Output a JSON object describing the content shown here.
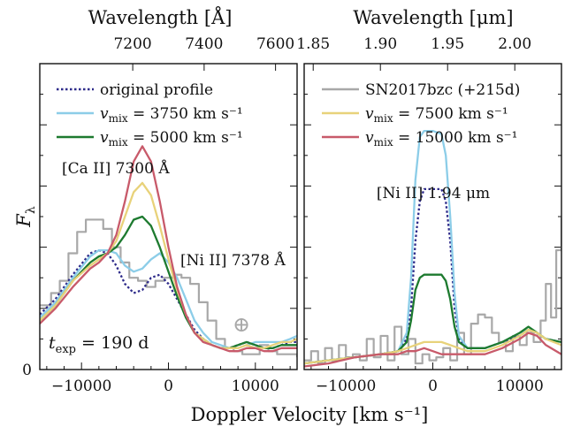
{
  "chart_data": {
    "type": "line",
    "xlabel": "Doppler Velocity [km s⁻¹]",
    "ylabel": "Fλ",
    "ylabel_parts": {
      "base": "F",
      "sub": "λ"
    },
    "zero_label": "0",
    "panels": [
      {
        "id": "left",
        "xlim": [
          -14800,
          14800
        ],
        "ylim": [
          0,
          1.0
        ],
        "xticks": [
          -10000,
          0,
          10000
        ],
        "xtick_labels": [
          "−10000",
          "0",
          "10000"
        ],
        "top_axis": {
          "label": "Wavelength [Å]",
          "ticks": [
            7200,
            7400,
            7600
          ],
          "tick_labels": [
            "7200",
            "7400",
            "7600"
          ],
          "rest_wavelength": 7300
        },
        "annotations": {
          "line1": "[Ca II] 7300 Å",
          "line2": "[Ni II] 7378 Å",
          "time_text": "t_exp = 190 d",
          "time_parts": {
            "base": "t",
            "sub": "exp",
            "rest": " = 190 d"
          },
          "earth_symbol": "⊕"
        },
        "legend": [
          {
            "label": "original profile",
            "color": "#2e2b8a",
            "dash": true
          },
          {
            "label": "v_mix = 3750 km s⁻¹",
            "base": "v",
            "sub": "mix",
            "rest": " = 3750 km s⁻¹",
            "color": "#8ccde8"
          },
          {
            "label": "v_mix = 5000 km s⁻¹",
            "base": "v",
            "sub": "mix",
            "rest": " = 5000 km s⁻¹",
            "color": "#1d7a2f"
          }
        ],
        "series": [
          {
            "name": "SN2017bzc (+215d)",
            "color": "#a8a8a8",
            "step": true,
            "x": [
              -14800,
              -13500,
              -12500,
              -11500,
              -10500,
              -9500,
              -8500,
              -7500,
              -6500,
              -5500,
              -4500,
              -3500,
              -2500,
              -1500,
              -500,
              500,
              1500,
              2500,
              3500,
              4500,
              5500,
              6500,
              7500,
              8500,
              9500,
              10500,
              11500,
              12500,
              13500,
              14800
            ],
            "y": [
              0.21,
              0.25,
              0.29,
              0.38,
              0.45,
              0.49,
              0.49,
              0.46,
              0.4,
              0.35,
              0.3,
              0.29,
              0.27,
              0.29,
              0.3,
              0.31,
              0.3,
              0.28,
              0.22,
              0.16,
              0.1,
              0.07,
              0.06,
              0.05,
              0.05,
              0.08,
              0.06,
              0.05,
              0.05,
              0.04
            ]
          },
          {
            "name": "original profile",
            "color": "#2e2b8a",
            "dash": true,
            "x": [
              -14800,
              -13000,
              -11000,
              -9000,
              -8000,
              -7000,
              -6000,
              -5000,
              -4000,
              -3000,
              -2000,
              -1000,
              0,
              1000,
              2000,
              3000,
              4000,
              5000,
              6000,
              7000,
              8000,
              9000,
              10000,
              11000,
              12000,
              13000,
              14000,
              14800
            ],
            "y": [
              0.18,
              0.23,
              0.31,
              0.38,
              0.39,
              0.38,
              0.34,
              0.28,
              0.25,
              0.26,
              0.3,
              0.31,
              0.28,
              0.23,
              0.18,
              0.13,
              0.1,
              0.08,
              0.07,
              0.07,
              0.08,
              0.09,
              0.08,
              0.07,
              0.07,
              0.08,
              0.09,
              0.09
            ]
          },
          {
            "name": "v_mix = 3750 km s⁻¹",
            "color": "#8ccde8",
            "x": [
              -14800,
              -13000,
              -11000,
              -9000,
              -8000,
              -7000,
              -6000,
              -5000,
              -4000,
              -3000,
              -2000,
              -1000,
              0,
              1000,
              2000,
              3000,
              4000,
              5000,
              6000,
              7000,
              8000,
              9000,
              10000,
              11000,
              12000,
              13000,
              14000,
              14800
            ],
            "y": [
              0.17,
              0.22,
              0.3,
              0.37,
              0.39,
              0.39,
              0.38,
              0.34,
              0.32,
              0.33,
              0.36,
              0.38,
              0.35,
              0.3,
              0.23,
              0.16,
              0.12,
              0.09,
              0.08,
              0.07,
              0.07,
              0.08,
              0.09,
              0.09,
              0.09,
              0.09,
              0.1,
              0.11
            ]
          },
          {
            "name": "v_mix = 5000 km s⁻¹",
            "color": "#1d7a2f",
            "x": [
              -14800,
              -13000,
              -11000,
              -9000,
              -8000,
              -7000,
              -6000,
              -5000,
              -4000,
              -3000,
              -2000,
              -1000,
              0,
              1000,
              2000,
              3000,
              4000,
              5000,
              6000,
              7000,
              8000,
              9000,
              10000,
              11000,
              12000,
              13000,
              14000,
              14800
            ],
            "y": [
              0.16,
              0.21,
              0.29,
              0.35,
              0.37,
              0.38,
              0.4,
              0.44,
              0.49,
              0.5,
              0.47,
              0.4,
              0.32,
              0.24,
              0.17,
              0.12,
              0.1,
              0.08,
              0.07,
              0.07,
              0.08,
              0.09,
              0.08,
              0.07,
              0.07,
              0.08,
              0.08,
              0.08
            ]
          },
          {
            "name": "v_mix = 7500 km s⁻¹",
            "color": "#e8d27a",
            "x": [
              -14800,
              -13000,
              -11000,
              -9000,
              -8000,
              -7000,
              -6000,
              -5000,
              -4000,
              -3000,
              -2000,
              -1000,
              0,
              1000,
              2000,
              3000,
              4000,
              5000,
              6000,
              7000,
              8000,
              9000,
              10000,
              11000,
              12000,
              13000,
              14000,
              14800
            ],
            "y": [
              0.16,
              0.21,
              0.29,
              0.34,
              0.36,
              0.38,
              0.42,
              0.5,
              0.58,
              0.61,
              0.57,
              0.47,
              0.36,
              0.26,
              0.18,
              0.12,
              0.1,
              0.08,
              0.07,
              0.07,
              0.07,
              0.08,
              0.07,
              0.07,
              0.08,
              0.09,
              0.09,
              0.1
            ]
          },
          {
            "name": "v_mix = 15000 km s⁻¹",
            "color": "#c85a6a",
            "x": [
              -14800,
              -13000,
              -11000,
              -9000,
              -8000,
              -7000,
              -6000,
              -5000,
              -4000,
              -3000,
              -2000,
              -1000,
              0,
              1000,
              2000,
              3000,
              4000,
              5000,
              6000,
              7000,
              8000,
              9000,
              10000,
              11000,
              12000,
              13000,
              14000,
              14800
            ],
            "y": [
              0.15,
              0.2,
              0.27,
              0.33,
              0.35,
              0.38,
              0.44,
              0.55,
              0.68,
              0.73,
              0.68,
              0.55,
              0.4,
              0.27,
              0.18,
              0.12,
              0.09,
              0.08,
              0.07,
              0.06,
              0.06,
              0.07,
              0.07,
              0.06,
              0.06,
              0.07,
              0.07,
              0.07
            ]
          }
        ]
      },
      {
        "id": "right",
        "xlim": [
          -14800,
          14800
        ],
        "ylim": [
          0,
          1.0
        ],
        "xticks": [
          -10000,
          0,
          10000
        ],
        "xtick_labels": [
          "−10000",
          "0",
          "10000"
        ],
        "top_axis": {
          "label": "Wavelength [μm]",
          "ticks": [
            1.85,
            1.9,
            1.95,
            2.0
          ],
          "tick_labels": [
            "1.85",
            "1.90",
            "1.95",
            "2.00"
          ],
          "rest_wavelength": 1.939
        },
        "annotations": {
          "line1": "[Ni II] 1.94 μm"
        },
        "legend": [
          {
            "label": "SN2017bzc (+215d)",
            "color": "#a8a8a8"
          },
          {
            "label": "v_mix = 7500 km s⁻¹",
            "base": "v",
            "sub": "mix",
            "rest": " = 7500 km s⁻¹",
            "color": "#e8d27a"
          },
          {
            "label": "v_mix = 15000 km s⁻¹",
            "base": "v",
            "sub": "mix",
            "rest": " = 15000 km s⁻¹",
            "color": "#c85a6a"
          }
        ],
        "series": [
          {
            "name": "SN2017bzc (+215d)",
            "color": "#a8a8a8",
            "step": true,
            "x": [
              -14800,
              -14000,
              -13200,
              -12400,
              -11600,
              -10800,
              -10000,
              -9200,
              -8400,
              -7600,
              -6800,
              -6000,
              -5200,
              -4400,
              -3600,
              -2800,
              -2000,
              -1200,
              -400,
              400,
              1200,
              2000,
              2800,
              3600,
              4400,
              5200,
              6000,
              6800,
              7600,
              8400,
              9200,
              10000,
              10800,
              11600,
              12400,
              13000,
              13600,
              14200,
              14800
            ],
            "y": [
              0.03,
              0.06,
              0.02,
              0.07,
              0.03,
              0.08,
              0.04,
              0.05,
              0.03,
              0.1,
              0.04,
              0.11,
              0.03,
              0.14,
              0.05,
              0.1,
              0.02,
              0.05,
              0.03,
              0.04,
              0.07,
              0.03,
              0.12,
              0.05,
              0.15,
              0.18,
              0.17,
              0.12,
              0.09,
              0.06,
              0.11,
              0.08,
              0.12,
              0.09,
              0.16,
              0.28,
              0.17,
              0.39,
              0.5
            ]
          },
          {
            "name": "original profile",
            "color": "#2e2b8a",
            "dash": true,
            "x": [
              -14800,
              -12000,
              -9000,
              -6000,
              -4000,
              -3000,
              -2500,
              -2000,
              -1500,
              -1000,
              0,
              1000,
              1500,
              2000,
              2500,
              3000,
              4000,
              6000,
              8000,
              10000,
              11000,
              12000,
              13000,
              14800
            ],
            "y": [
              0.02,
              0.03,
              0.04,
              0.05,
              0.06,
              0.1,
              0.2,
              0.42,
              0.55,
              0.59,
              0.59,
              0.59,
              0.55,
              0.42,
              0.2,
              0.1,
              0.07,
              0.07,
              0.09,
              0.11,
              0.13,
              0.12,
              0.1,
              0.09
            ]
          },
          {
            "name": "v_mix = 3750 km s⁻¹",
            "color": "#8ccde8",
            "x": [
              -14800,
              -12000,
              -9000,
              -6000,
              -4000,
              -3000,
              -2500,
              -2000,
              -1500,
              -1000,
              0,
              1000,
              1500,
              2000,
              2500,
              3000,
              4000,
              6000,
              8000,
              10000,
              11000,
              12000,
              13000,
              14800
            ],
            "y": [
              0.02,
              0.03,
              0.04,
              0.05,
              0.06,
              0.12,
              0.3,
              0.62,
              0.76,
              0.78,
              0.78,
              0.77,
              0.7,
              0.5,
              0.25,
              0.11,
              0.07,
              0.07,
              0.09,
              0.12,
              0.13,
              0.12,
              0.1,
              0.09
            ]
          },
          {
            "name": "v_mix = 5000 km s⁻¹",
            "color": "#1d7a2f",
            "x": [
              -14800,
              -12000,
              -9000,
              -6000,
              -4000,
              -3000,
              -2500,
              -2000,
              -1500,
              -1000,
              0,
              1000,
              1500,
              2000,
              2500,
              3000,
              4000,
              6000,
              8000,
              10000,
              11000,
              12000,
              13000,
              14800
            ],
            "y": [
              0.02,
              0.03,
              0.04,
              0.05,
              0.06,
              0.09,
              0.16,
              0.26,
              0.3,
              0.31,
              0.31,
              0.31,
              0.29,
              0.23,
              0.14,
              0.09,
              0.07,
              0.07,
              0.09,
              0.12,
              0.14,
              0.12,
              0.1,
              0.09
            ]
          },
          {
            "name": "v_mix = 7500 km s⁻¹",
            "color": "#e8d27a",
            "x": [
              -14800,
              -12000,
              -9000,
              -6000,
              -4000,
              -3000,
              -2000,
              -1000,
              0,
              1000,
              2000,
              3000,
              4000,
              6000,
              8000,
              10000,
              11000,
              12000,
              13000,
              14800
            ],
            "y": [
              0.02,
              0.03,
              0.04,
              0.05,
              0.06,
              0.07,
              0.08,
              0.09,
              0.09,
              0.09,
              0.08,
              0.07,
              0.06,
              0.06,
              0.08,
              0.11,
              0.13,
              0.12,
              0.1,
              0.08
            ]
          },
          {
            "name": "v_mix = 15000 km s⁻¹",
            "color": "#c85a6a",
            "x": [
              -14800,
              -12000,
              -9000,
              -6000,
              -4000,
              -3000,
              -2000,
              -1000,
              0,
              1000,
              2000,
              3000,
              4000,
              6000,
              8000,
              10000,
              11000,
              12000,
              13000,
              14800
            ],
            "y": [
              0.01,
              0.02,
              0.04,
              0.05,
              0.05,
              0.06,
              0.06,
              0.07,
              0.06,
              0.05,
              0.05,
              0.05,
              0.05,
              0.05,
              0.07,
              0.1,
              0.12,
              0.11,
              0.08,
              0.05
            ]
          }
        ]
      }
    ]
  }
}
